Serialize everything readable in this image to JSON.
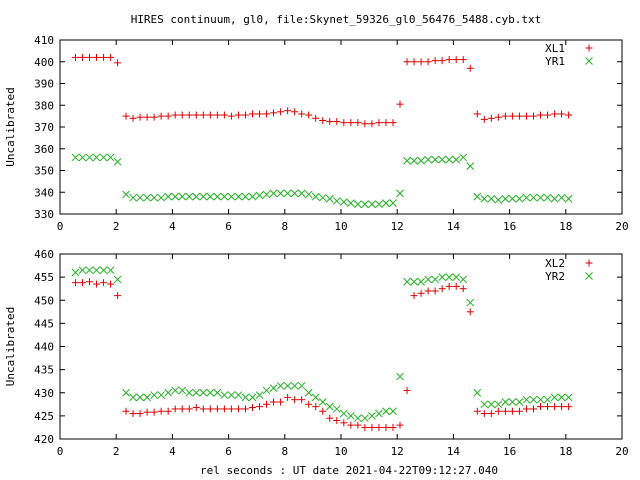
{
  "page": {
    "title": "HIRES continuum, gl0, file:Skynet_59326_gl0_56476_5488.cyb.txt"
  },
  "colors": {
    "red": "#e00000",
    "green": "#20b020",
    "axis": "#000000"
  },
  "chart_data": [
    {
      "type": "scatter",
      "ylabel": "Uncalibrated",
      "xlim": [
        0,
        20
      ],
      "ylim": [
        330,
        410
      ],
      "xticks": [
        0,
        2,
        4,
        6,
        8,
        10,
        12,
        14,
        16,
        18,
        20
      ],
      "yticks": [
        330,
        340,
        350,
        360,
        370,
        380,
        390,
        400,
        410
      ],
      "legend_position": "top-right",
      "series": [
        {
          "name": "XL1",
          "marker": "plus",
          "color": "#e00000",
          "x": [
            0.55,
            0.8,
            1.05,
            1.3,
            1.55,
            1.8,
            2.05,
            2.35,
            2.6,
            2.85,
            3.1,
            3.35,
            3.6,
            3.85,
            4.1,
            4.35,
            4.6,
            4.85,
            5.1,
            5.35,
            5.6,
            5.85,
            6.1,
            6.35,
            6.6,
            6.85,
            7.1,
            7.35,
            7.6,
            7.85,
            8.1,
            8.35,
            8.6,
            8.85,
            9.1,
            9.35,
            9.6,
            9.85,
            10.1,
            10.35,
            10.6,
            10.85,
            11.1,
            11.35,
            11.6,
            11.85,
            12.1,
            12.35,
            12.6,
            12.85,
            13.1,
            13.35,
            13.6,
            13.85,
            14.1,
            14.35,
            14.6,
            14.85,
            15.1,
            15.35,
            15.6,
            15.85,
            16.1,
            16.35,
            16.6,
            16.85,
            17.1,
            17.35,
            17.6,
            17.85,
            18.1
          ],
          "y": [
            402,
            402,
            402,
            402,
            402,
            402,
            399.5,
            375,
            374,
            374.5,
            374.5,
            374.5,
            375,
            375,
            375.5,
            375.5,
            375.5,
            375.5,
            375.5,
            375.5,
            375.5,
            375.5,
            375,
            375.5,
            375.5,
            376,
            376,
            376,
            376.5,
            377,
            377.5,
            377,
            376,
            375.5,
            374,
            373,
            372.5,
            372.5,
            372,
            372,
            372,
            371.5,
            371.5,
            372,
            372,
            372,
            380.5,
            400,
            400,
            400,
            400,
            400.5,
            400.5,
            401,
            401,
            401,
            397,
            376,
            373.5,
            374,
            374.5,
            375,
            375,
            375,
            375,
            375,
            375.5,
            375.5,
            376,
            376,
            375.5
          ]
        },
        {
          "name": "YR1",
          "marker": "cross",
          "color": "#20b020",
          "x": [
            0.55,
            0.8,
            1.05,
            1.3,
            1.55,
            1.8,
            2.05,
            2.35,
            2.6,
            2.85,
            3.1,
            3.35,
            3.6,
            3.85,
            4.1,
            4.35,
            4.6,
            4.85,
            5.1,
            5.35,
            5.6,
            5.85,
            6.1,
            6.35,
            6.6,
            6.85,
            7.1,
            7.35,
            7.6,
            7.85,
            8.1,
            8.35,
            8.6,
            8.85,
            9.1,
            9.35,
            9.6,
            9.85,
            10.1,
            10.35,
            10.6,
            10.85,
            11.1,
            11.35,
            11.6,
            11.85,
            12.1,
            12.35,
            12.6,
            12.85,
            13.1,
            13.35,
            13.6,
            13.85,
            14.1,
            14.35,
            14.6,
            14.85,
            15.1,
            15.35,
            15.6,
            15.85,
            16.1,
            16.35,
            16.6,
            16.85,
            17.1,
            17.35,
            17.6,
            17.85,
            18.1
          ],
          "y": [
            356,
            356,
            356,
            356,
            356,
            356,
            354,
            339,
            337.5,
            337.5,
            337.5,
            337.5,
            337.5,
            338,
            338,
            338,
            338,
            338,
            338,
            338,
            338,
            338,
            338,
            338,
            338,
            338,
            338.5,
            339,
            339.5,
            339.5,
            339.5,
            339.5,
            339.5,
            339,
            338,
            337.5,
            337,
            336,
            335.5,
            335,
            334.5,
            334.5,
            334.5,
            334.5,
            335,
            335,
            339.5,
            354.5,
            354.5,
            354.5,
            355,
            355,
            355,
            355,
            355,
            356,
            352,
            338,
            337,
            337,
            336.5,
            337,
            337,
            337,
            337.5,
            337.5,
            337.5,
            337.5,
            337,
            337.5,
            337
          ]
        }
      ]
    },
    {
      "type": "scatter",
      "ylabel": "Uncalibrated",
      "xlabel": "rel seconds : UT date 2021-04-22T09:12:27.040",
      "xlim": [
        0,
        20
      ],
      "ylim": [
        420,
        460
      ],
      "xticks": [
        0,
        2,
        4,
        6,
        8,
        10,
        12,
        14,
        16,
        18,
        20
      ],
      "yticks": [
        420,
        425,
        430,
        435,
        440,
        445,
        450,
        455,
        460
      ],
      "legend_position": "top-right",
      "series": [
        {
          "name": "XL2",
          "marker": "plus",
          "color": "#e00000",
          "x": [
            0.55,
            0.8,
            1.05,
            1.3,
            1.55,
            1.8,
            2.05,
            2.35,
            2.6,
            2.85,
            3.1,
            3.35,
            3.6,
            3.85,
            4.1,
            4.35,
            4.6,
            4.85,
            5.1,
            5.35,
            5.6,
            5.85,
            6.1,
            6.35,
            6.6,
            6.85,
            7.1,
            7.35,
            7.6,
            7.85,
            8.1,
            8.35,
            8.6,
            8.85,
            9.1,
            9.35,
            9.6,
            9.85,
            10.1,
            10.35,
            10.6,
            10.85,
            11.1,
            11.35,
            11.6,
            11.85,
            12.1,
            12.35,
            12.6,
            12.85,
            13.1,
            13.35,
            13.6,
            13.85,
            14.1,
            14.35,
            14.6,
            14.85,
            15.1,
            15.35,
            15.6,
            15.85,
            16.1,
            16.35,
            16.6,
            16.85,
            17.1,
            17.35,
            17.6,
            17.85,
            18.1
          ],
          "y": [
            453.8,
            453.8,
            454,
            453.5,
            453.8,
            453.5,
            451,
            426,
            425.5,
            425.5,
            425.8,
            425.8,
            426,
            426,
            426.5,
            426.5,
            426.5,
            426.8,
            426.5,
            426.5,
            426.5,
            426.5,
            426.5,
            426.5,
            426.5,
            426.8,
            427,
            427.5,
            428,
            428,
            429,
            428.5,
            428.5,
            427.5,
            427,
            426,
            424.5,
            424,
            423.5,
            423,
            423,
            422.5,
            422.5,
            422.5,
            422.5,
            422.5,
            423,
            430.5,
            451,
            451.5,
            452,
            452,
            452.5,
            453,
            453,
            452.5,
            447.5,
            426,
            425.5,
            425.5,
            426,
            426,
            426,
            426,
            426.5,
            426.5,
            427,
            427,
            427,
            427,
            427
          ]
        },
        {
          "name": "YR2",
          "marker": "cross",
          "color": "#20b020",
          "x": [
            0.55,
            0.8,
            1.05,
            1.3,
            1.55,
            1.8,
            2.05,
            2.35,
            2.6,
            2.85,
            3.1,
            3.35,
            3.6,
            3.85,
            4.1,
            4.35,
            4.6,
            4.85,
            5.1,
            5.35,
            5.6,
            5.85,
            6.1,
            6.35,
            6.6,
            6.85,
            7.1,
            7.35,
            7.6,
            7.85,
            8.1,
            8.35,
            8.6,
            8.85,
            9.1,
            9.35,
            9.6,
            9.85,
            10.1,
            10.35,
            10.6,
            10.85,
            11.1,
            11.35,
            11.6,
            11.85,
            12.1,
            12.35,
            12.6,
            12.85,
            13.1,
            13.35,
            13.6,
            13.85,
            14.1,
            14.35,
            14.6,
            14.85,
            15.1,
            15.35,
            15.6,
            15.85,
            16.1,
            16.35,
            16.6,
            16.85,
            17.1,
            17.35,
            17.6,
            17.85,
            18.1
          ],
          "y": [
            456,
            456.5,
            456.5,
            456.5,
            456.5,
            456.5,
            454.5,
            430,
            429,
            429,
            429,
            429.5,
            429.5,
            430,
            430.5,
            430.5,
            430,
            430,
            430,
            430,
            430,
            429.5,
            429.5,
            429.5,
            429,
            429,
            429.5,
            430.5,
            431,
            431.5,
            431.5,
            431.5,
            431.5,
            430,
            429,
            428,
            427,
            426.5,
            425.5,
            425,
            424.5,
            424.5,
            425,
            425.5,
            426,
            426,
            433.5,
            454,
            454,
            454,
            454.5,
            454.5,
            455,
            455,
            455,
            454.5,
            449.5,
            430,
            427.5,
            427.5,
            427.5,
            428,
            428,
            428,
            428.5,
            428.5,
            428.5,
            428.5,
            429,
            429,
            429
          ]
        }
      ]
    }
  ]
}
